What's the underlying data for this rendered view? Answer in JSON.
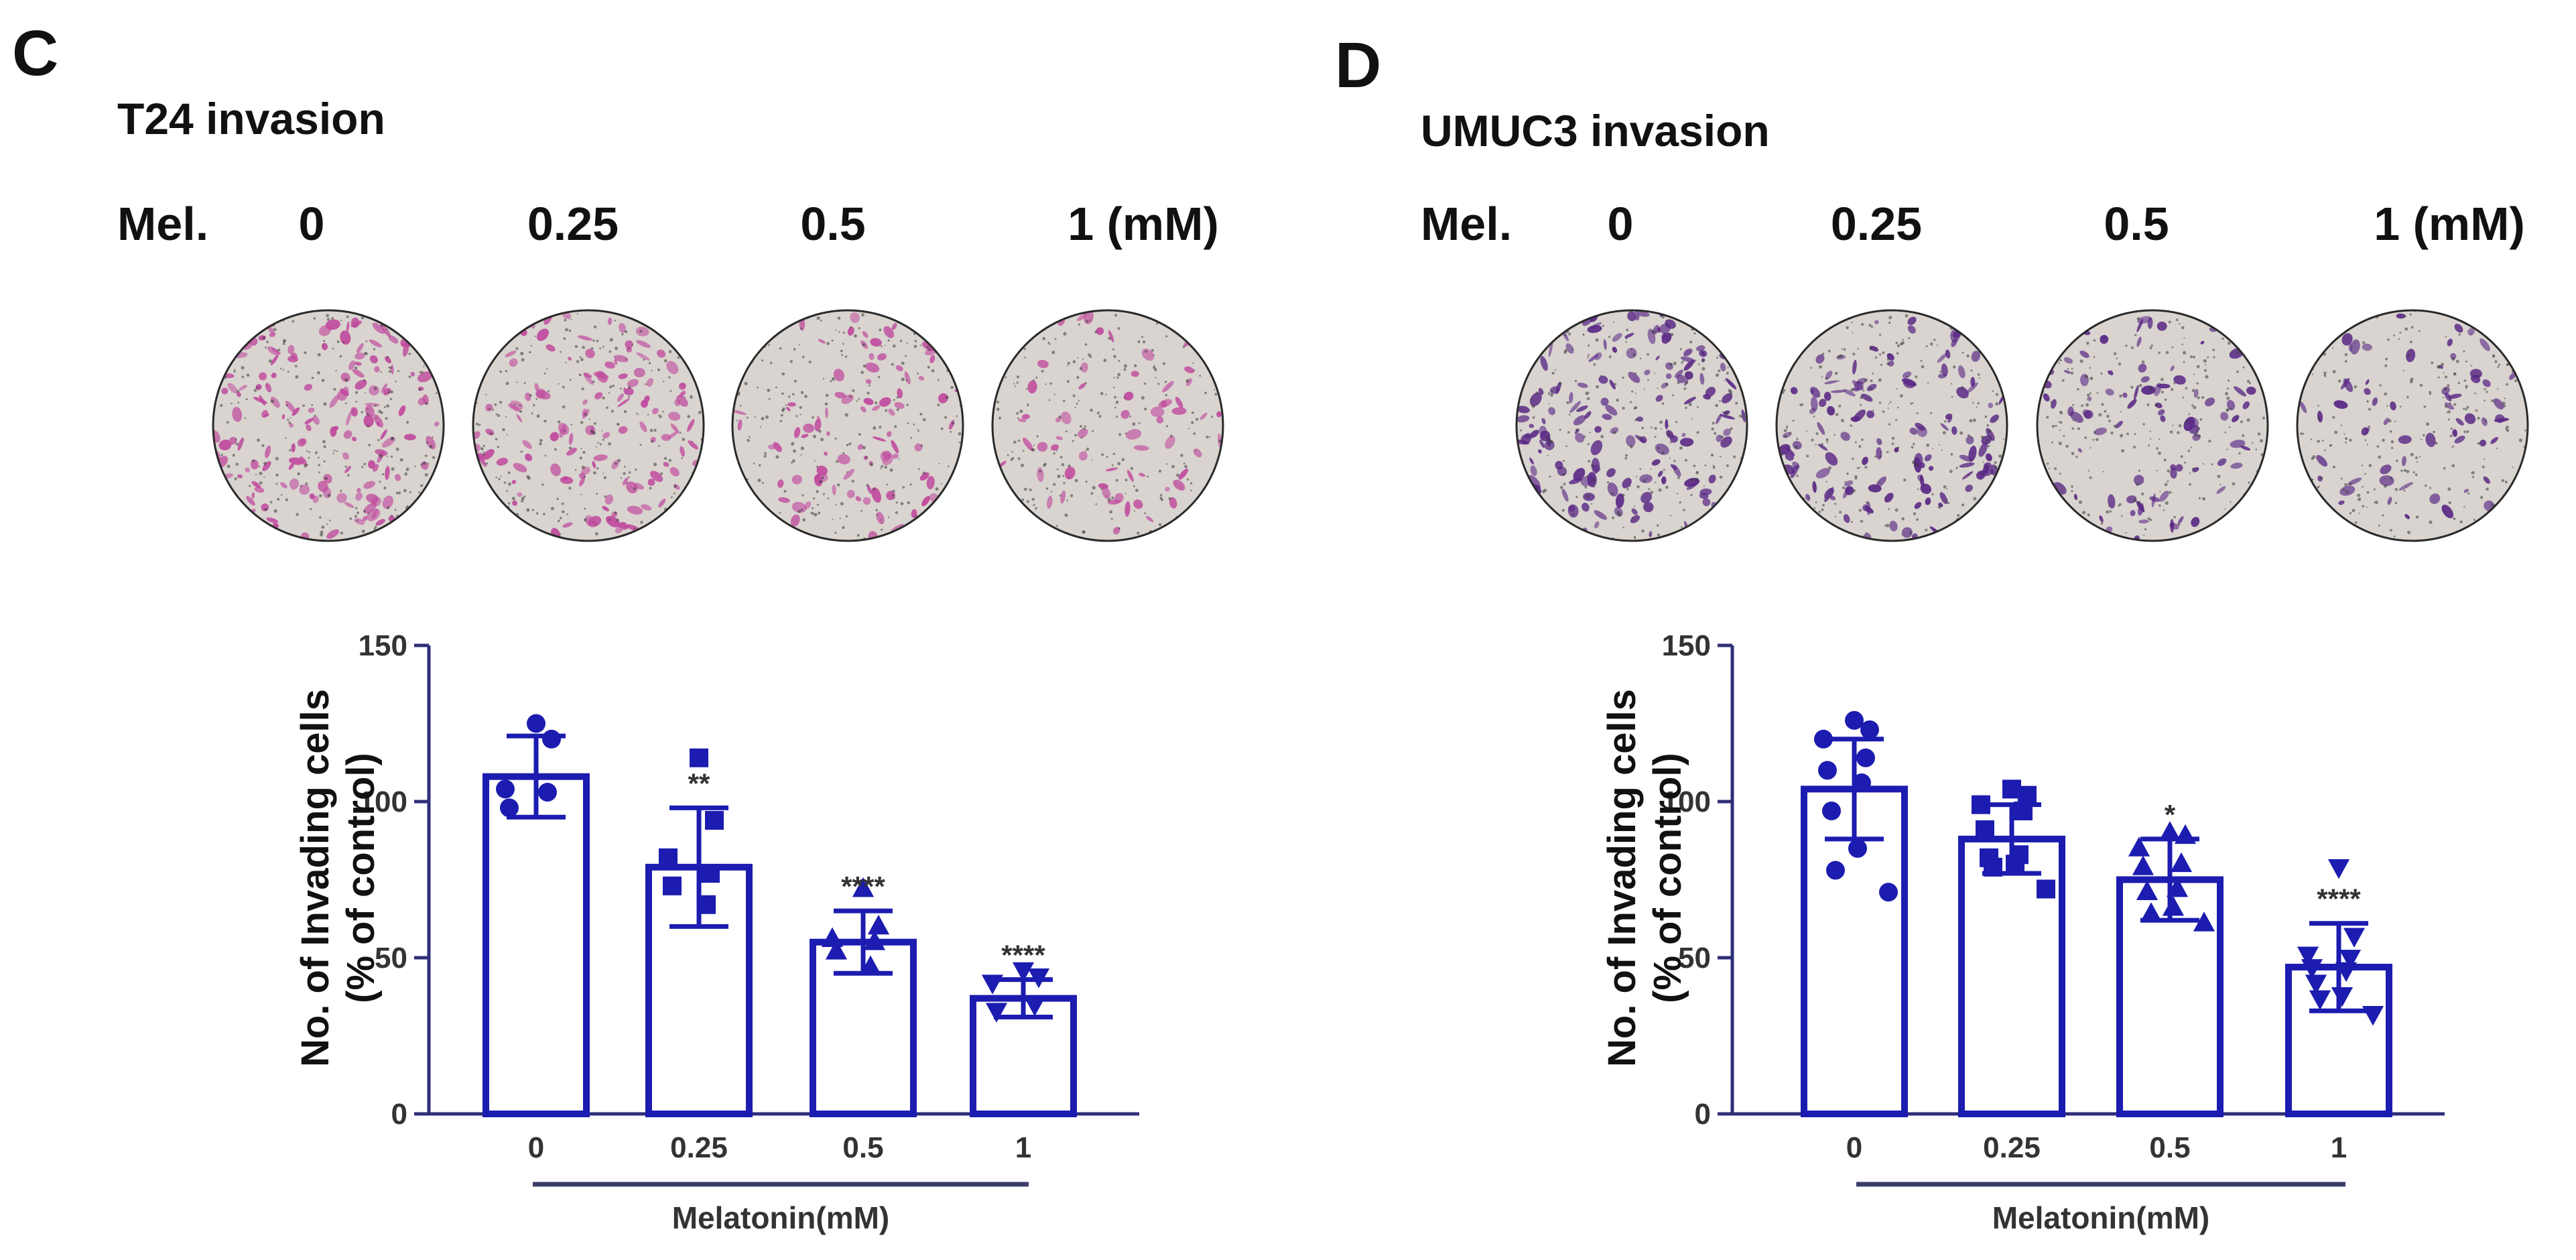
{
  "panels": [
    {
      "letter": "C",
      "title": "T24 invasion",
      "dose_header": {
        "label": "Mel.",
        "doses": [
          "0",
          "0.25",
          "0.5",
          "1 (mM)"
        ]
      },
      "stain_color": "#c04a9e",
      "chart_data": {
        "type": "bar",
        "title": "T24 invasion",
        "categories": [
          "0",
          "0.25",
          "0.5",
          "1"
        ],
        "ylabel": [
          "No. of Invading cells",
          "(% of control)"
        ],
        "xlabel": "Melatonin(mM)",
        "ylim": [
          0,
          150
        ],
        "yticks": [
          0,
          50,
          100,
          150
        ],
        "series": [
          {
            "name": "mean",
            "values": [
              108,
              79,
              55,
              37
            ]
          }
        ],
        "errors": [
          13,
          19,
          10,
          6
        ],
        "significance": [
          "",
          "**",
          "****",
          "****"
        ],
        "point_markers": [
          "circle",
          "square",
          "triangle-up",
          "triangle-down"
        ],
        "points": [
          [
            125,
            120,
            104,
            103,
            98
          ],
          [
            114,
            94,
            82,
            77,
            73,
            67
          ],
          [
            72,
            60,
            56,
            55,
            52,
            47
          ],
          [
            46,
            44,
            42,
            35,
            33
          ]
        ],
        "bar_color": "#1c1cb0"
      }
    },
    {
      "letter": "D",
      "title": "UMUC3 invasion",
      "dose_header": {
        "label": "Mel.",
        "doses": [
          "0",
          "0.25",
          "0.5",
          "1 (mM)"
        ]
      },
      "stain_color": "#5b2a86",
      "chart_data": {
        "type": "bar",
        "title": "UMUC3 invasion",
        "categories": [
          "0",
          "0.25",
          "0.5",
          "1"
        ],
        "ylabel": [
          "No. of Invading cells",
          "(% of control)"
        ],
        "xlabel": "Melatonin(mM)",
        "ylim": [
          0,
          150
        ],
        "yticks": [
          0,
          50,
          100,
          150
        ],
        "series": [
          {
            "name": "mean",
            "values": [
              104,
              88,
              75,
              47
            ]
          }
        ],
        "errors": [
          16,
          11,
          13,
          14
        ],
        "significance": [
          "",
          "",
          "*",
          "****"
        ],
        "point_markers": [
          "circle",
          "square",
          "triangle-up",
          "triangle-down"
        ],
        "points": [
          [
            126,
            123,
            120,
            114,
            110,
            106,
            97,
            85,
            78,
            71
          ],
          [
            104,
            102,
            99,
            97,
            91,
            83,
            82,
            80,
            79,
            72
          ],
          [
            90,
            89,
            85,
            80,
            79,
            72,
            71,
            66,
            64,
            61
          ],
          [
            79,
            57,
            51,
            50,
            47,
            46,
            42,
            38,
            37,
            32
          ]
        ],
        "bar_color": "#1c1cb0"
      }
    }
  ]
}
